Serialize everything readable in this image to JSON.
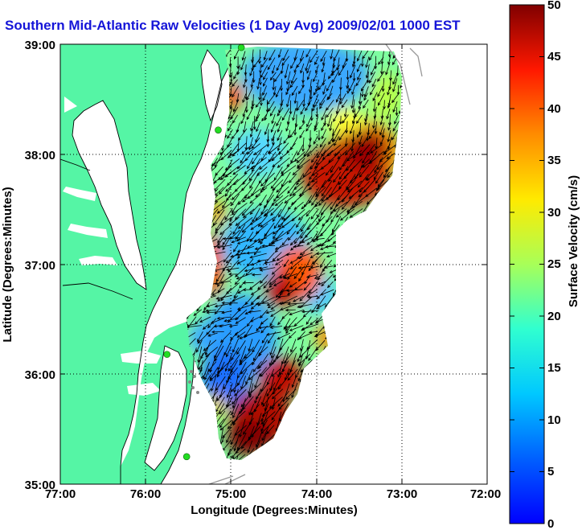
{
  "title": "Southern Mid-Atlantic Raw Velocities (1 Day Avg) 2009/02/01 1000 EST",
  "axes": {
    "xlabel": "Longitude (Degrees:Minutes)",
    "ylabel": "Latitude (Degrees:Minutes)",
    "x_ticks": [
      "77:00",
      "76:00",
      "75:00",
      "74:00",
      "73:00",
      "72:00"
    ],
    "y_ticks": [
      "39:00",
      "38:00",
      "37:00",
      "36:00",
      "35:00"
    ],
    "lon_range": [
      -77,
      -72
    ],
    "lat_range": [
      35,
      39
    ],
    "grid": "dotted"
  },
  "colorbar": {
    "label": "Surface Velocity (cm/s)",
    "ticks": [
      "50",
      "45",
      "40",
      "35",
      "30",
      "25",
      "20",
      "15",
      "10",
      "5",
      "0"
    ],
    "range": [
      0,
      50
    ],
    "colormap": "jet"
  },
  "colors": {
    "land": "#55f5a5",
    "water": "#ffffff",
    "title": "#1515d8",
    "station": "#22dd22",
    "arrow": "#000000",
    "bathymetry": "#999999"
  },
  "stations": [
    {
      "lon": -74.88,
      "lat": 38.97
    },
    {
      "lon": -75.15,
      "lat": 38.22
    },
    {
      "lon": -75.75,
      "lat": 36.18
    },
    {
      "lon": -75.52,
      "lat": 35.25
    }
  ]
}
